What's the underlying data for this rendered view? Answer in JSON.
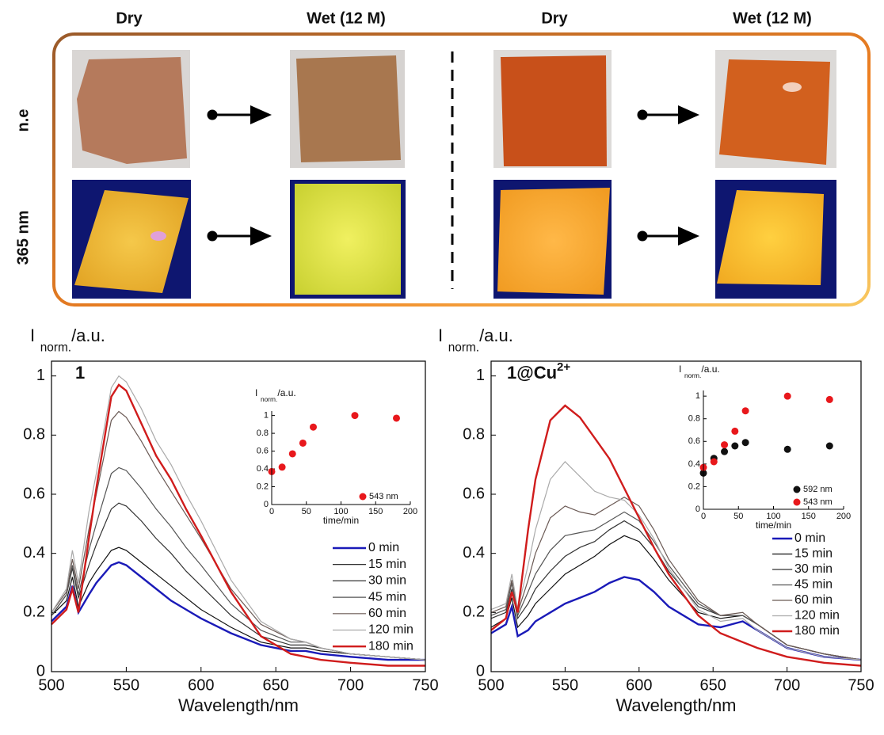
{
  "photo_panel": {
    "column_headers": [
      "Dry",
      "Wet (12 M)",
      "Dry",
      "Wet (12 M)"
    ],
    "row_labels": [
      "n.e",
      "365 nm"
    ]
  },
  "chart_data": [
    {
      "type": "line",
      "annotation": "1",
      "y_label": "I",
      "y_label_subscript": "norm.",
      "y_label_unit": "/a.u.",
      "x_label": "Wavelength/nm",
      "xlim": [
        500,
        750
      ],
      "ylim": [
        0,
        1.05
      ],
      "xticks": [
        500,
        550,
        600,
        650,
        700,
        750
      ],
      "yticks": [
        0,
        0.2,
        0.4,
        0.6,
        0.8,
        1
      ],
      "legend": "lower right",
      "x": [
        500,
        510,
        514,
        518,
        525,
        530,
        540,
        545,
        550,
        560,
        570,
        580,
        590,
        600,
        620,
        640,
        660,
        670,
        680,
        700,
        725,
        750
      ],
      "series": [
        {
          "name": "0 min",
          "color": "#1a1ab8",
          "values": [
            0.17,
            0.22,
            0.29,
            0.2,
            0.26,
            0.3,
            0.36,
            0.37,
            0.36,
            0.32,
            0.28,
            0.24,
            0.21,
            0.18,
            0.13,
            0.09,
            0.07,
            0.07,
            0.06,
            0.05,
            0.04,
            0.04
          ]
        },
        {
          "name": "15 min",
          "color": "#111111",
          "values": [
            0.19,
            0.24,
            0.32,
            0.22,
            0.3,
            0.34,
            0.41,
            0.42,
            0.41,
            0.37,
            0.33,
            0.29,
            0.25,
            0.21,
            0.15,
            0.1,
            0.08,
            0.08,
            0.07,
            0.06,
            0.05,
            0.04
          ]
        },
        {
          "name": "30 min",
          "color": "#333333",
          "values": [
            0.19,
            0.26,
            0.35,
            0.25,
            0.36,
            0.43,
            0.55,
            0.57,
            0.56,
            0.51,
            0.45,
            0.4,
            0.34,
            0.29,
            0.19,
            0.12,
            0.09,
            0.09,
            0.08,
            0.06,
            0.05,
            0.04
          ]
        },
        {
          "name": "45 min",
          "color": "#555555",
          "values": [
            0.19,
            0.26,
            0.36,
            0.26,
            0.41,
            0.5,
            0.67,
            0.69,
            0.68,
            0.62,
            0.55,
            0.49,
            0.42,
            0.36,
            0.23,
            0.14,
            0.1,
            0.1,
            0.08,
            0.06,
            0.05,
            0.04
          ]
        },
        {
          "name": "60 min",
          "color": "#6b5a55",
          "values": [
            0.2,
            0.27,
            0.38,
            0.28,
            0.48,
            0.6,
            0.85,
            0.88,
            0.86,
            0.78,
            0.69,
            0.61,
            0.53,
            0.45,
            0.28,
            0.16,
            0.11,
            0.1,
            0.08,
            0.06,
            0.05,
            0.04
          ]
        },
        {
          "name": "120 min",
          "color": "#aaaaaa",
          "values": [
            0.2,
            0.28,
            0.41,
            0.3,
            0.54,
            0.67,
            0.96,
            1.0,
            0.98,
            0.89,
            0.78,
            0.7,
            0.6,
            0.51,
            0.31,
            0.17,
            0.11,
            0.1,
            0.08,
            0.06,
            0.05,
            0.04
          ]
        },
        {
          "name": "180 min",
          "color": "#d01c1c",
          "values": [
            0.16,
            0.21,
            0.28,
            0.2,
            0.45,
            0.62,
            0.93,
            0.97,
            0.95,
            0.84,
            0.73,
            0.65,
            0.55,
            0.46,
            0.27,
            0.12,
            0.06,
            0.05,
            0.04,
            0.03,
            0.02,
            0.02
          ]
        }
      ]
    },
    {
      "type": "scatter",
      "y_label": "I",
      "y_label_subscript": "norm.",
      "y_label_unit": "/a.u.",
      "x_label": "time/min",
      "xlim": [
        0,
        200
      ],
      "ylim": [
        0,
        1.05
      ],
      "xticks": [
        0,
        50,
        100,
        150,
        200
      ],
      "yticks": [
        0,
        0.2,
        0.4,
        0.6,
        0.8,
        1
      ],
      "legend": "lower right",
      "x": [
        0,
        15,
        30,
        45,
        60,
        120,
        180
      ],
      "series": [
        {
          "name": "543 nm",
          "color": "#e8181c",
          "values": [
            0.37,
            0.42,
            0.57,
            0.69,
            0.87,
            1.0,
            0.97
          ]
        }
      ]
    },
    {
      "type": "line",
      "annotation": "1@Cu",
      "annotation_superscript": "2+",
      "y_label": "I",
      "y_label_subscript": "norm.",
      "y_label_unit": "/a.u.",
      "x_label": "Wavelength/nm",
      "xlim": [
        500,
        750
      ],
      "ylim": [
        0,
        1.05
      ],
      "xticks": [
        500,
        550,
        600,
        650,
        700,
        750
      ],
      "yticks": [
        0,
        0.2,
        0.4,
        0.6,
        0.8,
        1
      ],
      "legend": "lower right",
      "x": [
        500,
        510,
        514,
        518,
        525,
        530,
        540,
        550,
        560,
        570,
        580,
        590,
        600,
        610,
        620,
        640,
        655,
        670,
        680,
        700,
        725,
        750
      ],
      "series": [
        {
          "name": "0 min",
          "color": "#1a1ab8",
          "values": [
            0.13,
            0.16,
            0.22,
            0.12,
            0.14,
            0.17,
            0.2,
            0.23,
            0.25,
            0.27,
            0.3,
            0.32,
            0.31,
            0.27,
            0.22,
            0.16,
            0.15,
            0.17,
            0.14,
            0.08,
            0.05,
            0.04
          ]
        },
        {
          "name": "15 min",
          "color": "#111111",
          "values": [
            0.15,
            0.18,
            0.25,
            0.15,
            0.19,
            0.23,
            0.28,
            0.33,
            0.36,
            0.39,
            0.43,
            0.46,
            0.44,
            0.38,
            0.31,
            0.2,
            0.18,
            0.19,
            0.16,
            0.09,
            0.06,
            0.04
          ]
        },
        {
          "name": "30 min",
          "color": "#333333",
          "values": [
            0.18,
            0.2,
            0.28,
            0.18,
            0.23,
            0.28,
            0.34,
            0.39,
            0.42,
            0.44,
            0.48,
            0.51,
            0.48,
            0.42,
            0.34,
            0.22,
            0.19,
            0.19,
            0.16,
            0.09,
            0.06,
            0.04
          ]
        },
        {
          "name": "45 min",
          "color": "#555555",
          "values": [
            0.19,
            0.21,
            0.3,
            0.19,
            0.27,
            0.33,
            0.41,
            0.46,
            0.47,
            0.48,
            0.51,
            0.54,
            0.51,
            0.44,
            0.36,
            0.23,
            0.19,
            0.19,
            0.16,
            0.09,
            0.06,
            0.04
          ]
        },
        {
          "name": "60 min",
          "color": "#6b5a55",
          "values": [
            0.2,
            0.22,
            0.31,
            0.2,
            0.31,
            0.4,
            0.52,
            0.56,
            0.54,
            0.53,
            0.56,
            0.59,
            0.56,
            0.48,
            0.38,
            0.24,
            0.19,
            0.2,
            0.16,
            0.09,
            0.06,
            0.04
          ]
        },
        {
          "name": "120 min",
          "color": "#aaaaaa",
          "values": [
            0.21,
            0.23,
            0.33,
            0.21,
            0.36,
            0.48,
            0.65,
            0.71,
            0.66,
            0.61,
            0.59,
            0.58,
            0.53,
            0.45,
            0.35,
            0.21,
            0.17,
            0.18,
            0.14,
            0.08,
            0.05,
            0.04
          ]
        },
        {
          "name": "180 min",
          "color": "#d01c1c",
          "values": [
            0.14,
            0.18,
            0.27,
            0.2,
            0.48,
            0.65,
            0.85,
            0.9,
            0.86,
            0.79,
            0.72,
            0.62,
            0.52,
            0.42,
            0.33,
            0.19,
            0.13,
            0.1,
            0.08,
            0.05,
            0.03,
            0.02
          ]
        }
      ]
    },
    {
      "type": "scatter",
      "y_label": "I",
      "y_label_subscript": "norm.",
      "y_label_unit": "/a.u.",
      "x_label": "time/min",
      "xlim": [
        0,
        200
      ],
      "ylim": [
        0,
        1.05
      ],
      "xticks": [
        0,
        50,
        100,
        150,
        200
      ],
      "yticks": [
        0,
        0.2,
        0.4,
        0.6,
        0.8,
        1
      ],
      "legend": "lower right",
      "x": [
        0,
        15,
        30,
        45,
        60,
        120,
        180
      ],
      "series": [
        {
          "name": "592 nm",
          "color": "#111111",
          "values": [
            0.32,
            0.45,
            0.51,
            0.56,
            0.59,
            0.53,
            0.56
          ]
        },
        {
          "name": "543 nm",
          "color": "#e8181c",
          "values": [
            0.37,
            0.42,
            0.57,
            0.69,
            0.87,
            1.0,
            0.97
          ]
        }
      ]
    }
  ]
}
